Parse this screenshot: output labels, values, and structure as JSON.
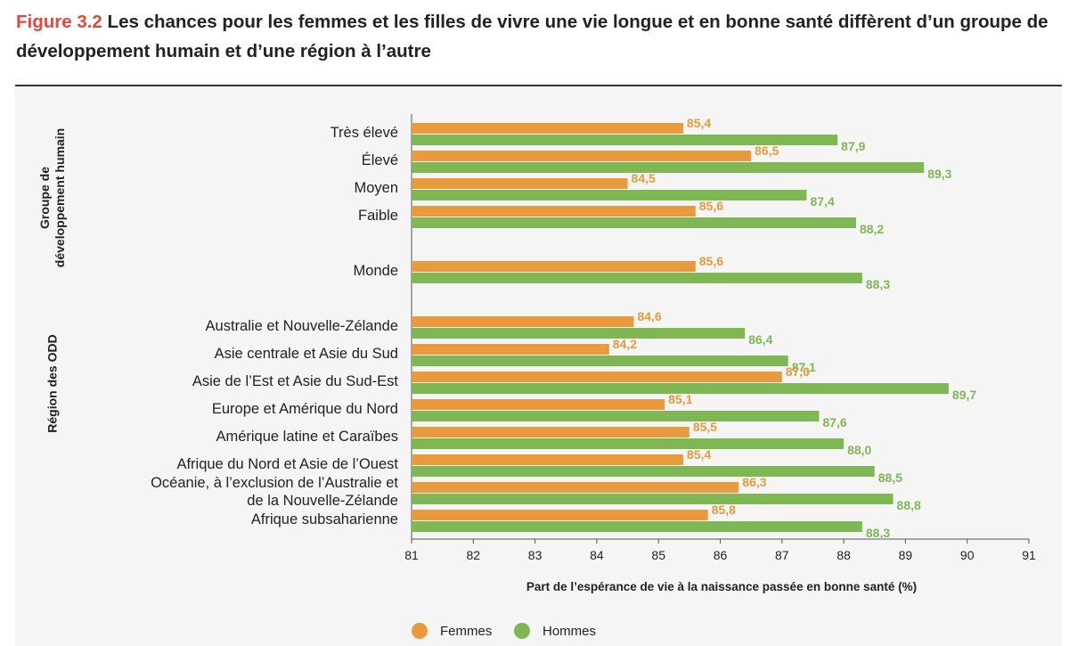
{
  "title": {
    "figure_num": "Figure 3.2",
    "text": "Les chances pour les femmes et les filles de vivre une vie longue et en bonne santé diffèrent d’un groupe de développement humain et d’une région à l’autre"
  },
  "colors": {
    "femmes": "#e89a3c",
    "hommes": "#7fb755"
  },
  "chart_data": {
    "type": "bar",
    "orientation": "horizontal",
    "xlabel": "Part de l’espérance de vie à la naissance passée en bonne santé (%)",
    "xlim": [
      81,
      91
    ],
    "xticks": [
      81,
      82,
      83,
      84,
      85,
      86,
      87,
      88,
      89,
      90,
      91
    ],
    "groups": [
      {
        "label": "Groupe de\ndéveloppement humain",
        "categories": [
          "Très élevé",
          "Élevé",
          "Moyen",
          "Faible"
        ]
      },
      {
        "label": "",
        "categories": [
          "Monde"
        ]
      },
      {
        "label": "Région des ODD",
        "categories": [
          "Australie et Nouvelle-Zélande",
          "Asie centrale et Asie du Sud",
          "Asie de l’Est et Asie du Sud-Est",
          "Europe et Amérique du Nord",
          "Amérique latine et Caraïbes",
          "Afrique du Nord et Asie de l’Ouest",
          "Océanie, à l’exclusion de l’Australie et\nde la Nouvelle-Zélande",
          "Afrique subsaharienne"
        ]
      }
    ],
    "series": [
      {
        "name": "Femmes",
        "values": [
          85.4,
          86.5,
          84.5,
          85.6,
          85.6,
          84.6,
          84.2,
          87.0,
          85.1,
          85.5,
          85.4,
          86.3,
          85.8
        ],
        "labels": [
          "85,4",
          "86,5",
          "84,5",
          "85,6",
          "85,6",
          "84,6",
          "84,2",
          "87,0",
          "85,1",
          "85,5",
          "85,4",
          "86,3",
          "85,8"
        ]
      },
      {
        "name": "Hommes",
        "values": [
          87.9,
          89.3,
          87.4,
          88.2,
          88.3,
          86.4,
          87.1,
          89.7,
          87.6,
          88.0,
          88.5,
          88.8,
          88.3
        ],
        "labels": [
          "87,9",
          "89,3",
          "87,4",
          "88,2",
          "88,3",
          "86,4",
          "87,1",
          "89,7",
          "87,6",
          "88,0",
          "88,5",
          "88,8",
          "88,3"
        ]
      }
    ],
    "legend": {
      "position": "bottom",
      "items": [
        "Femmes",
        "Hommes"
      ]
    }
  }
}
